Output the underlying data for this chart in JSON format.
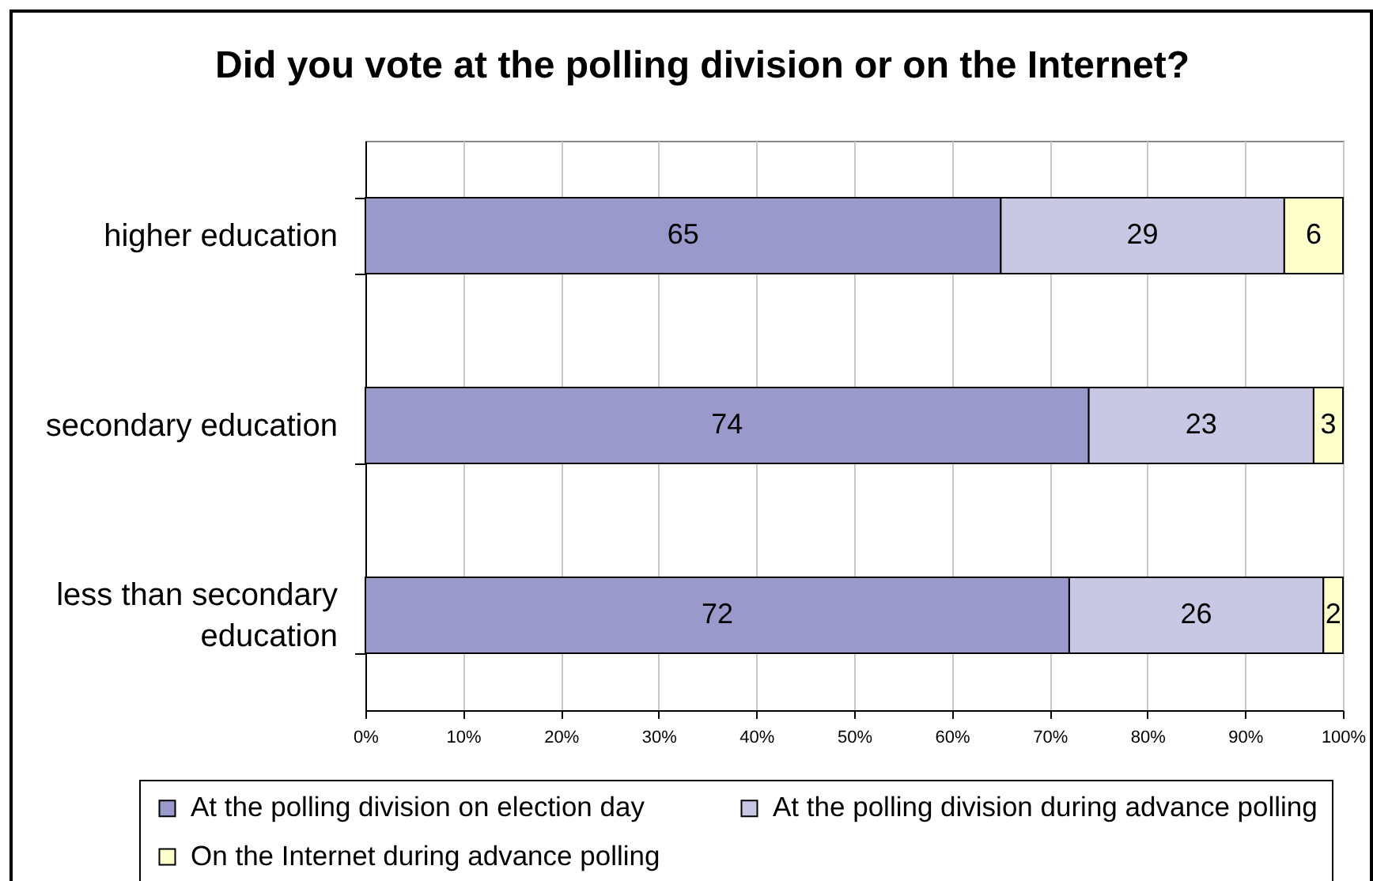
{
  "chart_data": {
    "type": "bar",
    "orientation": "horizontal",
    "stacked": true,
    "title": "Did you vote at the polling division or on the Internet?",
    "categories": [
      "higher education",
      "secondary education",
      "less than secondary education"
    ],
    "series": [
      {
        "name": "At the polling division on election day",
        "color": "#9999cc",
        "values": [
          65,
          74,
          72
        ]
      },
      {
        "name": "At the polling division during advance polling",
        "color": "#c8c8e4",
        "values": [
          29,
          23,
          26
        ]
      },
      {
        "name": "On the Internet during advance polling",
        "color": "#ffffcc",
        "values": [
          6,
          3,
          2
        ]
      }
    ],
    "xlim": [
      0,
      100
    ],
    "xticks": [
      {
        "value": 0,
        "label": "0%"
      },
      {
        "value": 10,
        "label": "10%"
      },
      {
        "value": 20,
        "label": "20%"
      },
      {
        "value": 30,
        "label": "30%"
      },
      {
        "value": 40,
        "label": "40%"
      },
      {
        "value": 50,
        "label": "50%"
      },
      {
        "value": 60,
        "label": "60%"
      },
      {
        "value": 70,
        "label": "70%"
      },
      {
        "value": 80,
        "label": "80%"
      },
      {
        "value": 90,
        "label": "90%"
      },
      {
        "value": 100,
        "label": "100%"
      }
    ],
    "grid": "x",
    "legend": "bottom",
    "data_labels": true
  }
}
